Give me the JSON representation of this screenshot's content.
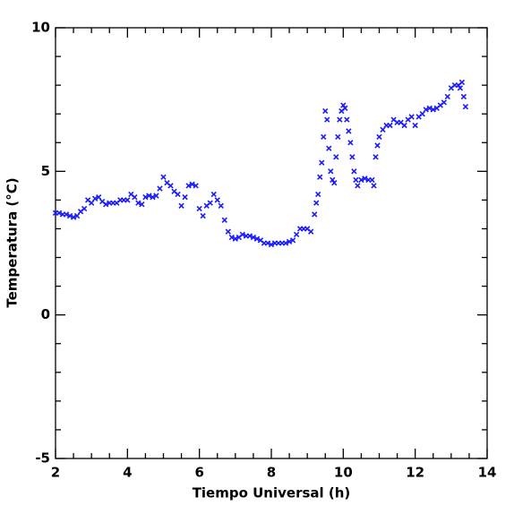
{
  "chart_data": {
    "type": "scatter",
    "x_label": "Tiempo Universal (h)",
    "y_label": "Temperatura (°C)",
    "xlim": [
      2,
      14
    ],
    "ylim": [
      -5,
      10
    ],
    "xticks": [
      2,
      4,
      6,
      8,
      10,
      12,
      14
    ],
    "yticks": [
      -5,
      0,
      5,
      10
    ],
    "xminorticks": [
      2.5,
      3,
      3.5,
      4.5,
      5,
      5.5,
      6.5,
      7,
      7.5,
      8.5,
      9,
      9.5,
      10.5,
      11,
      11.5,
      12.5,
      13,
      13.5
    ],
    "yminorticks": [
      -4,
      -3,
      -2,
      -1,
      1,
      2,
      3,
      4,
      6,
      7,
      8,
      9
    ],
    "color": "#1a1aff",
    "x": [
      2.0,
      2.1,
      2.2,
      2.3,
      2.4,
      2.5,
      2.6,
      2.7,
      2.8,
      2.9,
      3.0,
      3.1,
      3.2,
      3.3,
      3.4,
      3.5,
      3.6,
      3.7,
      3.8,
      3.9,
      4.0,
      4.1,
      4.2,
      4.3,
      4.4,
      4.5,
      4.6,
      4.7,
      4.8,
      4.9,
      5.0,
      5.1,
      5.2,
      5.3,
      5.4,
      5.5,
      5.6,
      5.7,
      5.8,
      5.9,
      6.0,
      6.1,
      6.2,
      6.3,
      6.4,
      6.5,
      6.6,
      6.7,
      6.8,
      6.9,
      7.0,
      7.1,
      7.2,
      7.3,
      7.4,
      7.5,
      7.6,
      7.7,
      7.8,
      7.9,
      8.0,
      8.1,
      8.2,
      8.3,
      8.4,
      8.5,
      8.6,
      8.7,
      8.8,
      8.9,
      9.0,
      9.1,
      9.2,
      9.25,
      9.3,
      9.35,
      9.4,
      9.45,
      9.5,
      9.55,
      9.6,
      9.65,
      9.7,
      9.75,
      9.8,
      9.85,
      9.9,
      9.95,
      10.0,
      10.05,
      10.1,
      10.15,
      10.2,
      10.25,
      10.3,
      10.35,
      10.4,
      10.5,
      10.6,
      10.7,
      10.8,
      10.85,
      10.9,
      10.95,
      11.0,
      11.1,
      11.2,
      11.3,
      11.4,
      11.5,
      11.6,
      11.7,
      11.8,
      11.9,
      12.0,
      12.1,
      12.2,
      12.3,
      12.4,
      12.5,
      12.6,
      12.7,
      12.8,
      12.9,
      13.0,
      13.1,
      13.2,
      13.25,
      13.3,
      13.35,
      13.4
    ],
    "values": [
      3.55,
      3.55,
      3.5,
      3.5,
      3.45,
      3.4,
      3.45,
      3.6,
      3.7,
      4.0,
      3.9,
      4.05,
      4.1,
      3.95,
      3.85,
      3.9,
      3.9,
      3.9,
      4.0,
      4.0,
      4.0,
      4.2,
      4.1,
      3.9,
      3.85,
      4.1,
      4.15,
      4.1,
      4.15,
      4.4,
      4.8,
      4.6,
      4.5,
      4.3,
      4.2,
      3.8,
      4.1,
      4.5,
      4.55,
      4.5,
      3.7,
      3.45,
      3.8,
      3.9,
      4.2,
      4.0,
      3.8,
      3.3,
      2.9,
      2.7,
      2.65,
      2.7,
      2.8,
      2.75,
      2.75,
      2.7,
      2.65,
      2.6,
      2.5,
      2.5,
      2.45,
      2.5,
      2.5,
      2.5,
      2.5,
      2.55,
      2.6,
      2.8,
      3.0,
      3.0,
      3.0,
      2.9,
      3.5,
      3.9,
      4.2,
      4.8,
      5.3,
      6.2,
      7.1,
      6.8,
      5.8,
      5.0,
      4.7,
      4.6,
      5.5,
      6.2,
      6.8,
      7.1,
      7.3,
      7.2,
      6.8,
      6.4,
      6.0,
      5.5,
      5.0,
      4.7,
      4.5,
      4.7,
      4.75,
      4.7,
      4.7,
      4.5,
      5.5,
      5.9,
      6.2,
      6.45,
      6.6,
      6.6,
      6.8,
      6.7,
      6.7,
      6.6,
      6.8,
      6.9,
      6.6,
      6.9,
      7.0,
      7.15,
      7.2,
      7.15,
      7.2,
      7.3,
      7.4,
      7.6,
      7.9,
      8.0,
      8.0,
      7.9,
      8.1,
      7.6,
      7.25
    ]
  }
}
